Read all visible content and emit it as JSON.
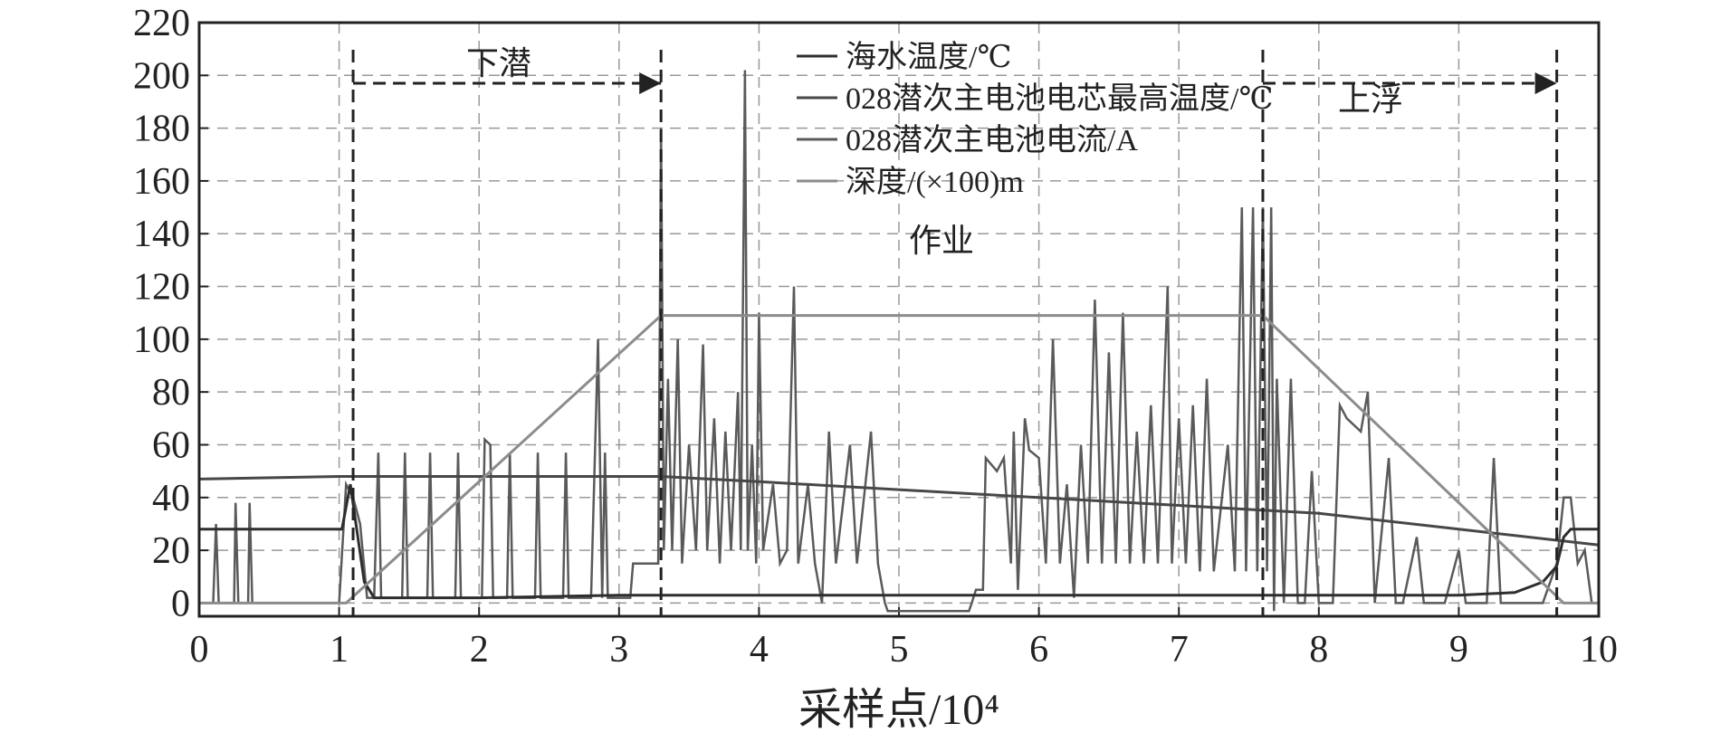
{
  "chart_data": {
    "type": "line",
    "xlabel": "采样点/10⁴",
    "xlim": [
      0,
      10
    ],
    "xticks": [
      0,
      1,
      2,
      3,
      4,
      5,
      6,
      7,
      8,
      9,
      10
    ],
    "ylim": [
      -5,
      220
    ],
    "yticks": [
      0,
      20,
      40,
      60,
      80,
      100,
      120,
      140,
      160,
      180,
      200,
      220
    ],
    "grid": true,
    "annotations": [
      "下潜",
      "作业",
      "上浮"
    ],
    "phase_lines": [
      1.1,
      3.3,
      7.6,
      9.7
    ],
    "phase_arrows": [
      [
        1.1,
        3.3
      ],
      [
        7.6,
        9.7
      ]
    ],
    "arrow_y": 197,
    "series": [
      {
        "name": "海水温度/℃",
        "color": "#2e2e2e",
        "x": [
          0,
          1.02,
          1.08,
          1.12,
          1.18,
          1.25,
          2,
          3,
          4,
          5,
          6,
          7,
          8,
          9,
          9.4,
          9.6,
          9.7,
          9.75,
          9.8,
          10
        ],
        "values": [
          28,
          28,
          45,
          30,
          8,
          2,
          2,
          3,
          3,
          3,
          3,
          3,
          3,
          3,
          4,
          8,
          14,
          25,
          28,
          28
        ]
      },
      {
        "name": "028潜次主电池电芯最高温度/℃",
        "color": "#474747",
        "x": [
          0,
          1,
          2,
          3,
          3.3,
          4,
          5,
          6,
          7,
          8,
          9,
          10
        ],
        "values": [
          47,
          48,
          48,
          48,
          48,
          46,
          43,
          40,
          37,
          34,
          28,
          22
        ]
      },
      {
        "name": "028潜次主电池电流/A",
        "color": "#5a5a5a",
        "x": [
          0,
          0.1,
          0.12,
          0.14,
          0.25,
          0.26,
          0.28,
          0.35,
          0.36,
          0.38,
          1.0,
          1.05,
          1.1,
          1.15,
          1.2,
          1.25,
          1.28,
          1.3,
          1.45,
          1.47,
          1.49,
          1.63,
          1.65,
          1.67,
          1.83,
          1.85,
          1.87,
          2.02,
          2.04,
          2.08,
          2.1,
          2.2,
          2.22,
          2.24,
          2.4,
          2.42,
          2.44,
          2.6,
          2.62,
          2.64,
          2.8,
          2.85,
          2.88,
          2.9,
          2.92,
          3.08,
          3.1,
          3.28,
          3.3,
          3.32,
          3.35,
          3.38,
          3.42,
          3.45,
          3.5,
          3.55,
          3.6,
          3.63,
          3.68,
          3.72,
          3.76,
          3.8,
          3.85,
          3.87,
          3.9,
          3.92,
          3.95,
          3.98,
          4.0,
          4.03,
          4.1,
          4.15,
          4.2,
          4.25,
          4.28,
          4.35,
          4.4,
          4.45,
          4.5,
          4.55,
          4.65,
          4.7,
          4.8,
          4.85,
          4.9,
          4.92,
          5.5,
          5.52,
          5.55,
          5.6,
          5.62,
          5.7,
          5.75,
          5.8,
          5.82,
          5.85,
          5.9,
          5.93,
          6.0,
          6.05,
          6.1,
          6.15,
          6.2,
          6.25,
          6.3,
          6.35,
          6.4,
          6.45,
          6.5,
          6.55,
          6.6,
          6.65,
          6.7,
          6.75,
          6.8,
          6.85,
          6.92,
          6.95,
          7.0,
          7.05,
          7.1,
          7.15,
          7.2,
          7.25,
          7.35,
          7.4,
          7.45,
          7.48,
          7.53,
          7.56,
          7.6,
          7.63,
          7.66,
          7.68,
          7.7,
          7.75,
          7.8,
          7.85,
          7.9,
          7.95,
          8.0,
          8.1,
          8.15,
          8.2,
          8.3,
          8.35,
          8.4,
          8.5,
          8.55,
          8.6,
          8.7,
          8.75,
          8.9,
          9.0,
          9.05,
          9.2,
          9.25,
          9.3,
          9.6,
          9.7,
          9.75,
          9.8,
          9.85,
          9.9,
          9.95,
          10
        ],
        "values": [
          0,
          0,
          30,
          0,
          0,
          38,
          0,
          0,
          38,
          0,
          0,
          45,
          40,
          30,
          2,
          2,
          57,
          2,
          2,
          57,
          2,
          2,
          57,
          2,
          2,
          57,
          2,
          2,
          62,
          60,
          2,
          2,
          57,
          2,
          2,
          57,
          2,
          2,
          57,
          2,
          2,
          100,
          2,
          57,
          2,
          2,
          15,
          15,
          180,
          20,
          85,
          20,
          100,
          15,
          60,
          20,
          98,
          20,
          70,
          15,
          65,
          20,
          80,
          20,
          202,
          20,
          60,
          15,
          110,
          20,
          45,
          15,
          20,
          120,
          15,
          45,
          15,
          0,
          65,
          15,
          60,
          15,
          65,
          15,
          0,
          -3,
          -3,
          0,
          5,
          5,
          55,
          50,
          55,
          15,
          65,
          5,
          70,
          58,
          55,
          15,
          100,
          15,
          45,
          2,
          60,
          15,
          115,
          15,
          95,
          15,
          110,
          15,
          65,
          15,
          75,
          15,
          120,
          15,
          70,
          15,
          75,
          12,
          85,
          12,
          60,
          12,
          150,
          12,
          150,
          12,
          150,
          12,
          150,
          -3,
          85,
          0,
          85,
          0,
          0,
          50,
          0,
          0,
          75,
          70,
          65,
          80,
          0,
          55,
          0,
          0,
          25,
          0,
          0,
          20,
          0,
          0,
          55,
          0,
          0,
          15,
          40,
          40,
          15,
          20,
          0,
          0
        ]
      },
      {
        "name": "深度/(×100)m",
        "color": "#8c8c8c",
        "x": [
          0,
          1.05,
          3.3,
          7.6,
          9.75,
          10
        ],
        "values": [
          0,
          0,
          109,
          109,
          0,
          0
        ]
      }
    ]
  }
}
